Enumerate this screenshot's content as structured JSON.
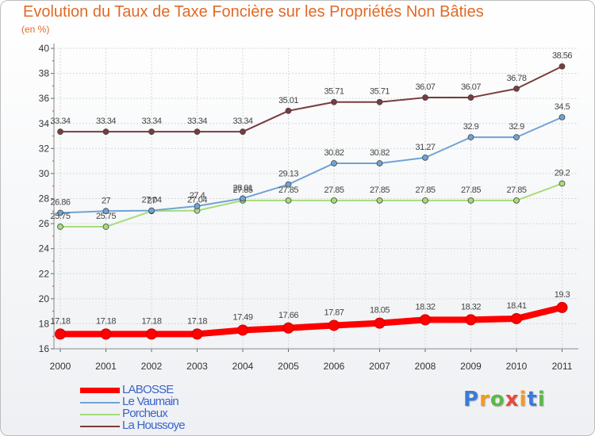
{
  "header": {
    "title": "Evolution du Taux de Taxe Foncière sur les Propriétés Non Bâties",
    "unit": "(en %)"
  },
  "logo": {
    "text": "Proxiti",
    "colors": [
      "#3a7bd5",
      "#f29b1d",
      "#5bb947",
      "#e8483b",
      "#f29b1d",
      "#3a7bd5",
      "#5bb947"
    ]
  },
  "chart_data": {
    "type": "line",
    "title": "Evolution du Taux de Taxe Foncière sur les Propriétés Non Bâties",
    "ylabel": "(en %)",
    "xlabel": "",
    "x": [
      "2000",
      "2001",
      "2002",
      "2003",
      "2004",
      "2005",
      "2006",
      "2007",
      "2008",
      "2009",
      "2010",
      "2011"
    ],
    "ylim": [
      16,
      40
    ],
    "yticks": [
      16,
      18,
      20,
      22,
      24,
      26,
      28,
      30,
      32,
      34,
      36,
      38,
      40
    ],
    "grid": true,
    "legend_position": "bottom-left",
    "series": [
      {
        "name": "LABOSSE",
        "color": "#ff0000",
        "values": [
          17.18,
          17.18,
          17.18,
          17.18,
          17.49,
          17.66,
          17.87,
          18.05,
          18.32,
          18.32,
          18.41,
          19.3
        ],
        "labels": [
          "17.18",
          "17.18",
          "17.18",
          "17.18",
          "17.49",
          "17.66",
          "17.87",
          "18.05",
          "18.32",
          "18.32",
          "18.41",
          "19.3"
        ]
      },
      {
        "name": "Le Vaumain",
        "color": "#6fa3d6",
        "values": [
          26.86,
          27,
          27.04,
          27.4,
          28.01,
          29.13,
          30.82,
          30.82,
          31.27,
          32.9,
          32.9,
          34.5
        ],
        "labels": [
          "26.86",
          "27",
          "27.04",
          "27.4",
          "28.01",
          "29.13",
          "30.82",
          "30.82",
          "31.27",
          "32.9",
          "32.9",
          "34.5"
        ]
      },
      {
        "name": "Porcheux",
        "color": "#a6dd7a",
        "values": [
          25.75,
          25.75,
          27,
          27.04,
          27.85,
          27.85,
          27.85,
          27.85,
          27.85,
          27.85,
          27.85,
          29.2
        ],
        "labels": [
          "25.75",
          "25.75",
          "27",
          "27.04",
          "27.85",
          "27.85",
          "27.85",
          "27.85",
          "27.85",
          "27.85",
          "27.85",
          "29.2"
        ]
      },
      {
        "name": "La Houssoye",
        "color": "#7a3c3c",
        "values": [
          33.34,
          33.34,
          33.34,
          33.34,
          33.34,
          35.01,
          35.71,
          35.71,
          36.07,
          36.07,
          36.78,
          38.56
        ],
        "labels": [
          "33.34",
          "33.34",
          "33.34",
          "33.34",
          "33.34",
          "35.01",
          "35.71",
          "35.71",
          "36.07",
          "36.07",
          "36.78",
          "38.56"
        ]
      }
    ]
  }
}
